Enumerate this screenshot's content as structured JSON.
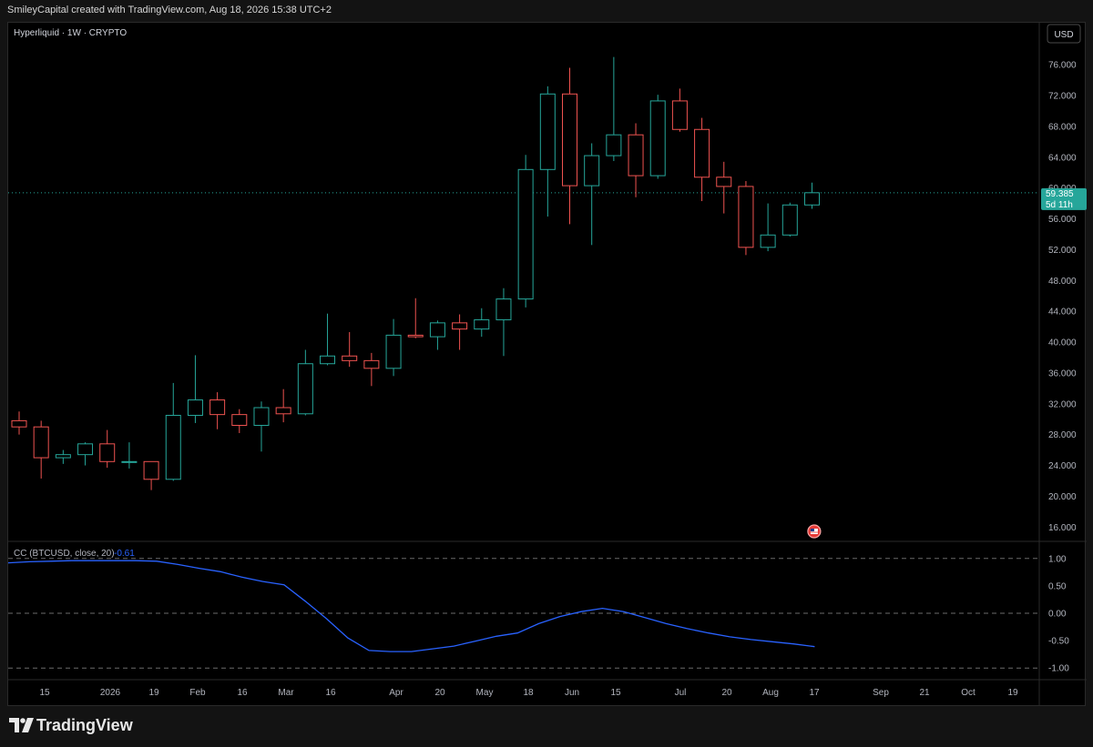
{
  "header": {
    "attribution": "SmileyCapital created with TradingView.com, Aug 18, 2026 15:38 UTC+2"
  },
  "chart": {
    "symbol_label": "Hyperliquid · 1W · CRYPTO",
    "currency_button": "USD",
    "price_line_label": "59.385",
    "countdown_label": "5d 11h",
    "hidden_axis_label": "60.000"
  },
  "indicator": {
    "name": "CC (BTCUSD, close, 20)",
    "value": "-0.61"
  },
  "branding": {
    "logo_text": "TradingView"
  },
  "colors": {
    "up": "#26a69a",
    "down": "#ef5350",
    "indicator_line": "#2962ff",
    "price_badge": "#26a69a",
    "event_marker": "#e53935"
  },
  "chart_data": [
    {
      "type": "candlestick",
      "title": "Hyperliquid · 1W · CRYPTO",
      "y_axis": {
        "ticks": [
          "16.000",
          "20.000",
          "24.000",
          "28.000",
          "32.000",
          "36.000",
          "40.000",
          "44.000",
          "48.000",
          "52.000",
          "56.000",
          "60.000",
          "64.000",
          "68.000",
          "72.000",
          "76.000"
        ],
        "range": [
          14.5,
          80.5
        ]
      },
      "x_axis": {
        "ticks": [
          "15",
          "2026",
          "19",
          "Feb",
          "16",
          "Mar",
          "16",
          "Apr",
          "20",
          "May",
          "18",
          "Jun",
          "15",
          "Jul",
          "20",
          "Aug",
          "17",
          "Sep",
          "21",
          "Oct",
          "19"
        ]
      },
      "current_price": 59.385,
      "candles": [
        {
          "o": 29.8,
          "h": 31.0,
          "l": 28.0,
          "c": 29.0
        },
        {
          "o": 29.0,
          "h": 29.8,
          "l": 22.3,
          "c": 25.0
        },
        {
          "o": 25.0,
          "h": 26.0,
          "l": 24.2,
          "c": 25.4
        },
        {
          "o": 25.4,
          "h": 27.0,
          "l": 24.0,
          "c": 26.8
        },
        {
          "o": 26.8,
          "h": 28.6,
          "l": 23.7,
          "c": 24.5
        },
        {
          "o": 24.5,
          "h": 27.0,
          "l": 23.6,
          "c": 24.5
        },
        {
          "o": 24.5,
          "h": 24.5,
          "l": 20.8,
          "c": 22.2
        },
        {
          "o": 22.2,
          "h": 34.7,
          "l": 22.0,
          "c": 30.5
        },
        {
          "o": 30.5,
          "h": 38.3,
          "l": 29.5,
          "c": 32.5
        },
        {
          "o": 32.5,
          "h": 33.5,
          "l": 28.7,
          "c": 30.6
        },
        {
          "o": 30.6,
          "h": 31.3,
          "l": 28.2,
          "c": 29.2
        },
        {
          "o": 29.2,
          "h": 32.3,
          "l": 25.8,
          "c": 31.5
        },
        {
          "o": 31.5,
          "h": 33.9,
          "l": 29.6,
          "c": 30.7
        },
        {
          "o": 30.7,
          "h": 39.0,
          "l": 30.5,
          "c": 37.2
        },
        {
          "o": 37.2,
          "h": 43.7,
          "l": 37.0,
          "c": 38.2
        },
        {
          "o": 38.2,
          "h": 41.3,
          "l": 36.8,
          "c": 37.6
        },
        {
          "o": 37.6,
          "h": 38.6,
          "l": 34.3,
          "c": 36.6
        },
        {
          "o": 36.6,
          "h": 43.0,
          "l": 35.6,
          "c": 40.9
        },
        {
          "o": 40.9,
          "h": 45.7,
          "l": 40.5,
          "c": 40.7
        },
        {
          "o": 40.7,
          "h": 42.8,
          "l": 39.0,
          "c": 42.5
        },
        {
          "o": 42.5,
          "h": 43.6,
          "l": 39.0,
          "c": 41.7
        },
        {
          "o": 41.7,
          "h": 44.4,
          "l": 40.7,
          "c": 42.9
        },
        {
          "o": 42.9,
          "h": 47.0,
          "l": 38.2,
          "c": 45.6
        },
        {
          "o": 45.6,
          "h": 64.3,
          "l": 44.5,
          "c": 62.4
        },
        {
          "o": 62.4,
          "h": 73.2,
          "l": 56.3,
          "c": 72.2
        },
        {
          "o": 72.2,
          "h": 75.6,
          "l": 55.3,
          "c": 60.3
        },
        {
          "o": 60.3,
          "h": 65.8,
          "l": 52.6,
          "c": 64.2
        },
        {
          "o": 64.2,
          "h": 77.0,
          "l": 63.5,
          "c": 66.9
        },
        {
          "o": 66.9,
          "h": 68.4,
          "l": 58.8,
          "c": 61.6
        },
        {
          "o": 61.6,
          "h": 72.1,
          "l": 61.2,
          "c": 71.3
        },
        {
          "o": 71.3,
          "h": 72.9,
          "l": 67.3,
          "c": 67.6
        },
        {
          "o": 67.6,
          "h": 69.1,
          "l": 58.3,
          "c": 61.4
        },
        {
          "o": 61.4,
          "h": 63.4,
          "l": 56.7,
          "c": 60.2
        },
        {
          "o": 60.2,
          "h": 60.9,
          "l": 51.3,
          "c": 52.3
        },
        {
          "o": 52.3,
          "h": 58.0,
          "l": 51.8,
          "c": 53.9
        },
        {
          "o": 53.9,
          "h": 58.1,
          "l": 53.7,
          "c": 57.8
        },
        {
          "o": 57.8,
          "h": 60.7,
          "l": 57.3,
          "c": 59.385
        }
      ]
    },
    {
      "type": "line",
      "title": "CC (BTCUSD, close, 20)",
      "y_axis": {
        "ticks": [
          "1.00",
          "0.50",
          "0.00",
          "-0.50",
          "-1.00"
        ],
        "range": [
          -1.03,
          1.03
        ]
      },
      "series": [
        {
          "name": "CC (BTCUSD, close, 20)",
          "values": [
            0.92,
            0.94,
            0.95,
            0.96,
            0.96,
            0.96,
            0.96,
            0.95,
            0.89,
            0.82,
            0.76,
            0.66,
            0.58,
            0.52,
            0.22,
            -0.1,
            -0.45,
            -0.68,
            -0.7,
            -0.7,
            -0.65,
            -0.6,
            -0.51,
            -0.42,
            -0.36,
            -0.19,
            -0.06,
            0.03,
            0.09,
            0.03,
            -0.08,
            -0.19,
            -0.28,
            -0.36,
            -0.43,
            -0.48,
            -0.52,
            -0.56,
            -0.61
          ]
        }
      ]
    }
  ]
}
